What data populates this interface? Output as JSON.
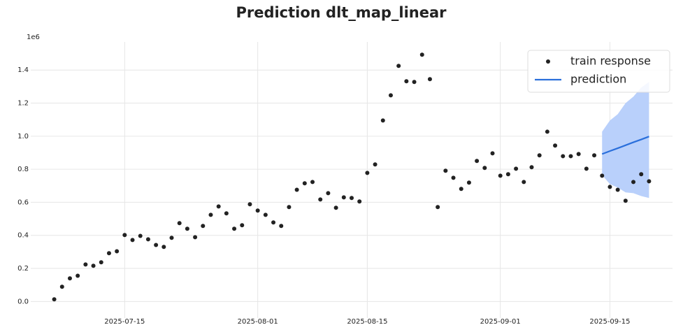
{
  "chart_data": {
    "type": "scatter",
    "title": "Prediction dlt_map_linear",
    "y_offset_label": "1e6",
    "xlim": [
      "2025-07-03",
      "2025-09-23"
    ],
    "xticks": [
      "2025-07-15",
      "2025-08-01",
      "2025-08-15",
      "2025-09-01",
      "2025-09-15"
    ],
    "ylim": [
      -100000,
      1570000
    ],
    "yticks": [
      {
        "value": 0,
        "label": "0.0"
      },
      {
        "value": 200000,
        "label": "0.2"
      },
      {
        "value": 400000,
        "label": "0.4"
      },
      {
        "value": 600000,
        "label": "0.6"
      },
      {
        "value": 800000,
        "label": "0.8"
      },
      {
        "value": 1000000,
        "label": "1.0"
      },
      {
        "value": 1200000,
        "label": "1.2"
      },
      {
        "value": 1400000,
        "label": "1.4"
      }
    ],
    "grid": true,
    "legend": "upper right",
    "series": [
      {
        "name": "train response",
        "type": "scatter",
        "color": "#222222",
        "x": [
          "2025-07-06",
          "2025-07-07",
          "2025-07-08",
          "2025-07-09",
          "2025-07-10",
          "2025-07-11",
          "2025-07-12",
          "2025-07-13",
          "2025-07-14",
          "2025-07-15",
          "2025-07-16",
          "2025-07-17",
          "2025-07-18",
          "2025-07-19",
          "2025-07-20",
          "2025-07-21",
          "2025-07-22",
          "2025-07-23",
          "2025-07-24",
          "2025-07-25",
          "2025-07-26",
          "2025-07-27",
          "2025-07-28",
          "2025-07-29",
          "2025-07-30",
          "2025-07-31",
          "2025-08-01",
          "2025-08-02",
          "2025-08-03",
          "2025-08-04",
          "2025-08-05",
          "2025-08-06",
          "2025-08-07",
          "2025-08-08",
          "2025-08-09",
          "2025-08-10",
          "2025-08-11",
          "2025-08-12",
          "2025-08-13",
          "2025-08-14",
          "2025-08-15",
          "2025-08-16",
          "2025-08-17",
          "2025-08-18",
          "2025-08-19",
          "2025-08-20",
          "2025-08-21",
          "2025-08-22",
          "2025-08-23",
          "2025-08-24",
          "2025-08-25",
          "2025-08-26",
          "2025-08-27",
          "2025-08-28",
          "2025-08-29",
          "2025-08-30",
          "2025-08-31",
          "2025-09-01",
          "2025-09-02",
          "2025-09-03",
          "2025-09-04",
          "2025-09-05",
          "2025-09-06",
          "2025-09-07",
          "2025-09-08",
          "2025-09-09",
          "2025-09-10",
          "2025-09-11",
          "2025-09-12",
          "2025-09-13",
          "2025-09-14",
          "2025-09-15",
          "2025-09-16",
          "2025-09-17",
          "2025-09-18",
          "2025-09-19",
          "2025-09-20"
        ],
        "values": [
          13000,
          89000,
          140000,
          156000,
          224000,
          216000,
          237000,
          292000,
          304000,
          402000,
          372000,
          397000,
          376000,
          342000,
          330000,
          385000,
          474000,
          440000,
          389000,
          457000,
          524000,
          575000,
          533000,
          440000,
          461000,
          588000,
          550000,
          524000,
          478000,
          457000,
          571000,
          676000,
          715000,
          723000,
          617000,
          655000,
          567000,
          630000,
          626000,
          605000,
          778000,
          829000,
          1095000,
          1247000,
          1425000,
          1332000,
          1328000,
          1493000,
          1345000,
          571000,
          791000,
          748000,
          681000,
          719000,
          850000,
          808000,
          896000,
          761000,
          770000,
          803000,
          723000,
          812000,
          884000,
          1027000,
          943000,
          879000,
          879000,
          892000,
          803000,
          884000,
          761000,
          693000,
          676000,
          609000,
          723000,
          770000,
          727000
        ]
      },
      {
        "name": "prediction",
        "type": "line",
        "color": "#2a6fdb",
        "band_color": "#b9d0fb",
        "x": [
          "2025-09-14",
          "2025-09-15",
          "2025-09-16",
          "2025-09-17",
          "2025-09-18",
          "2025-09-19",
          "2025-09-20"
        ],
        "values": [
          892000,
          910000,
          927000,
          945000,
          963000,
          980000,
          998000
        ],
        "lower": [
          765000,
          710000,
          689000,
          660000,
          655000,
          638000,
          626000
        ],
        "upper": [
          1027000,
          1095000,
          1133000,
          1200000,
          1239000,
          1294000,
          1328000
        ]
      }
    ]
  }
}
